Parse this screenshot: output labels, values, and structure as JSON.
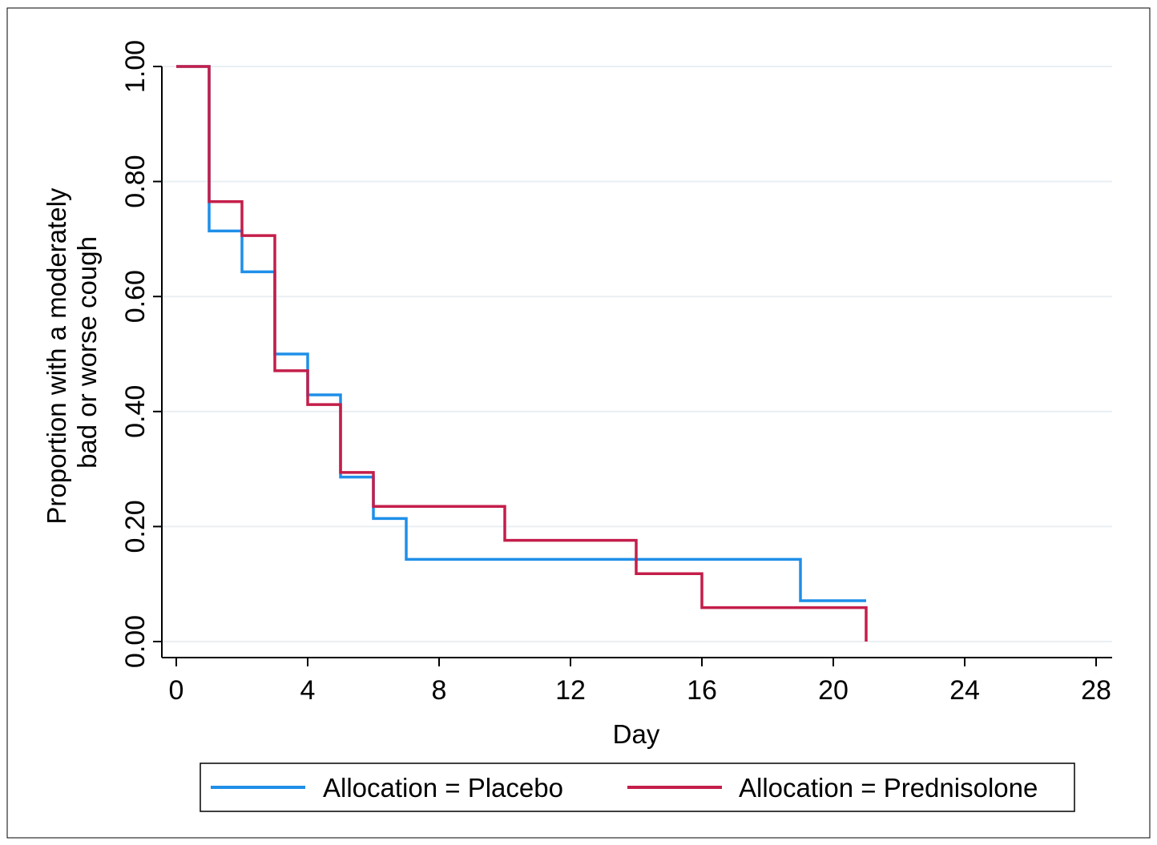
{
  "chart_data": {
    "type": "line",
    "step": true,
    "title": "",
    "xlabel": "Day",
    "ylabel_lines": [
      "Proportion with a moderately",
      "bad or worse cough"
    ],
    "xlim": [
      0,
      28
    ],
    "ylim": [
      0,
      1
    ],
    "x_ticks": [
      0,
      4,
      8,
      12,
      16,
      20,
      24,
      28
    ],
    "x_tick_labels": [
      "0",
      "4",
      "8",
      "12",
      "16",
      "20",
      "24",
      "28"
    ],
    "y_ticks": [
      0,
      0.2,
      0.4,
      0.6,
      0.8,
      1.0
    ],
    "y_tick_labels": [
      "0.00",
      "0.20",
      "0.40",
      "0.60",
      "0.80",
      "1.00"
    ],
    "grid": "horizontal",
    "legend_position": "bottom",
    "series": [
      {
        "name": "Allocation = Placebo",
        "color": "#1f8fe8",
        "x": [
          0,
          1,
          2,
          3,
          4,
          5,
          6,
          7,
          19,
          21,
          21
        ],
        "y": [
          1.0,
          0.714,
          0.643,
          0.5,
          0.429,
          0.286,
          0.214,
          0.143,
          0.071,
          0.071,
          0.071
        ]
      },
      {
        "name": "Allocation = Prednisolone",
        "color": "#c41e4a",
        "x": [
          0,
          1,
          2,
          3,
          4,
          5,
          6,
          10,
          14,
          16,
          21,
          21
        ],
        "y": [
          1.0,
          0.765,
          0.706,
          0.471,
          0.412,
          0.294,
          0.235,
          0.176,
          0.118,
          0.059,
          0.059,
          0.0
        ]
      }
    ]
  }
}
